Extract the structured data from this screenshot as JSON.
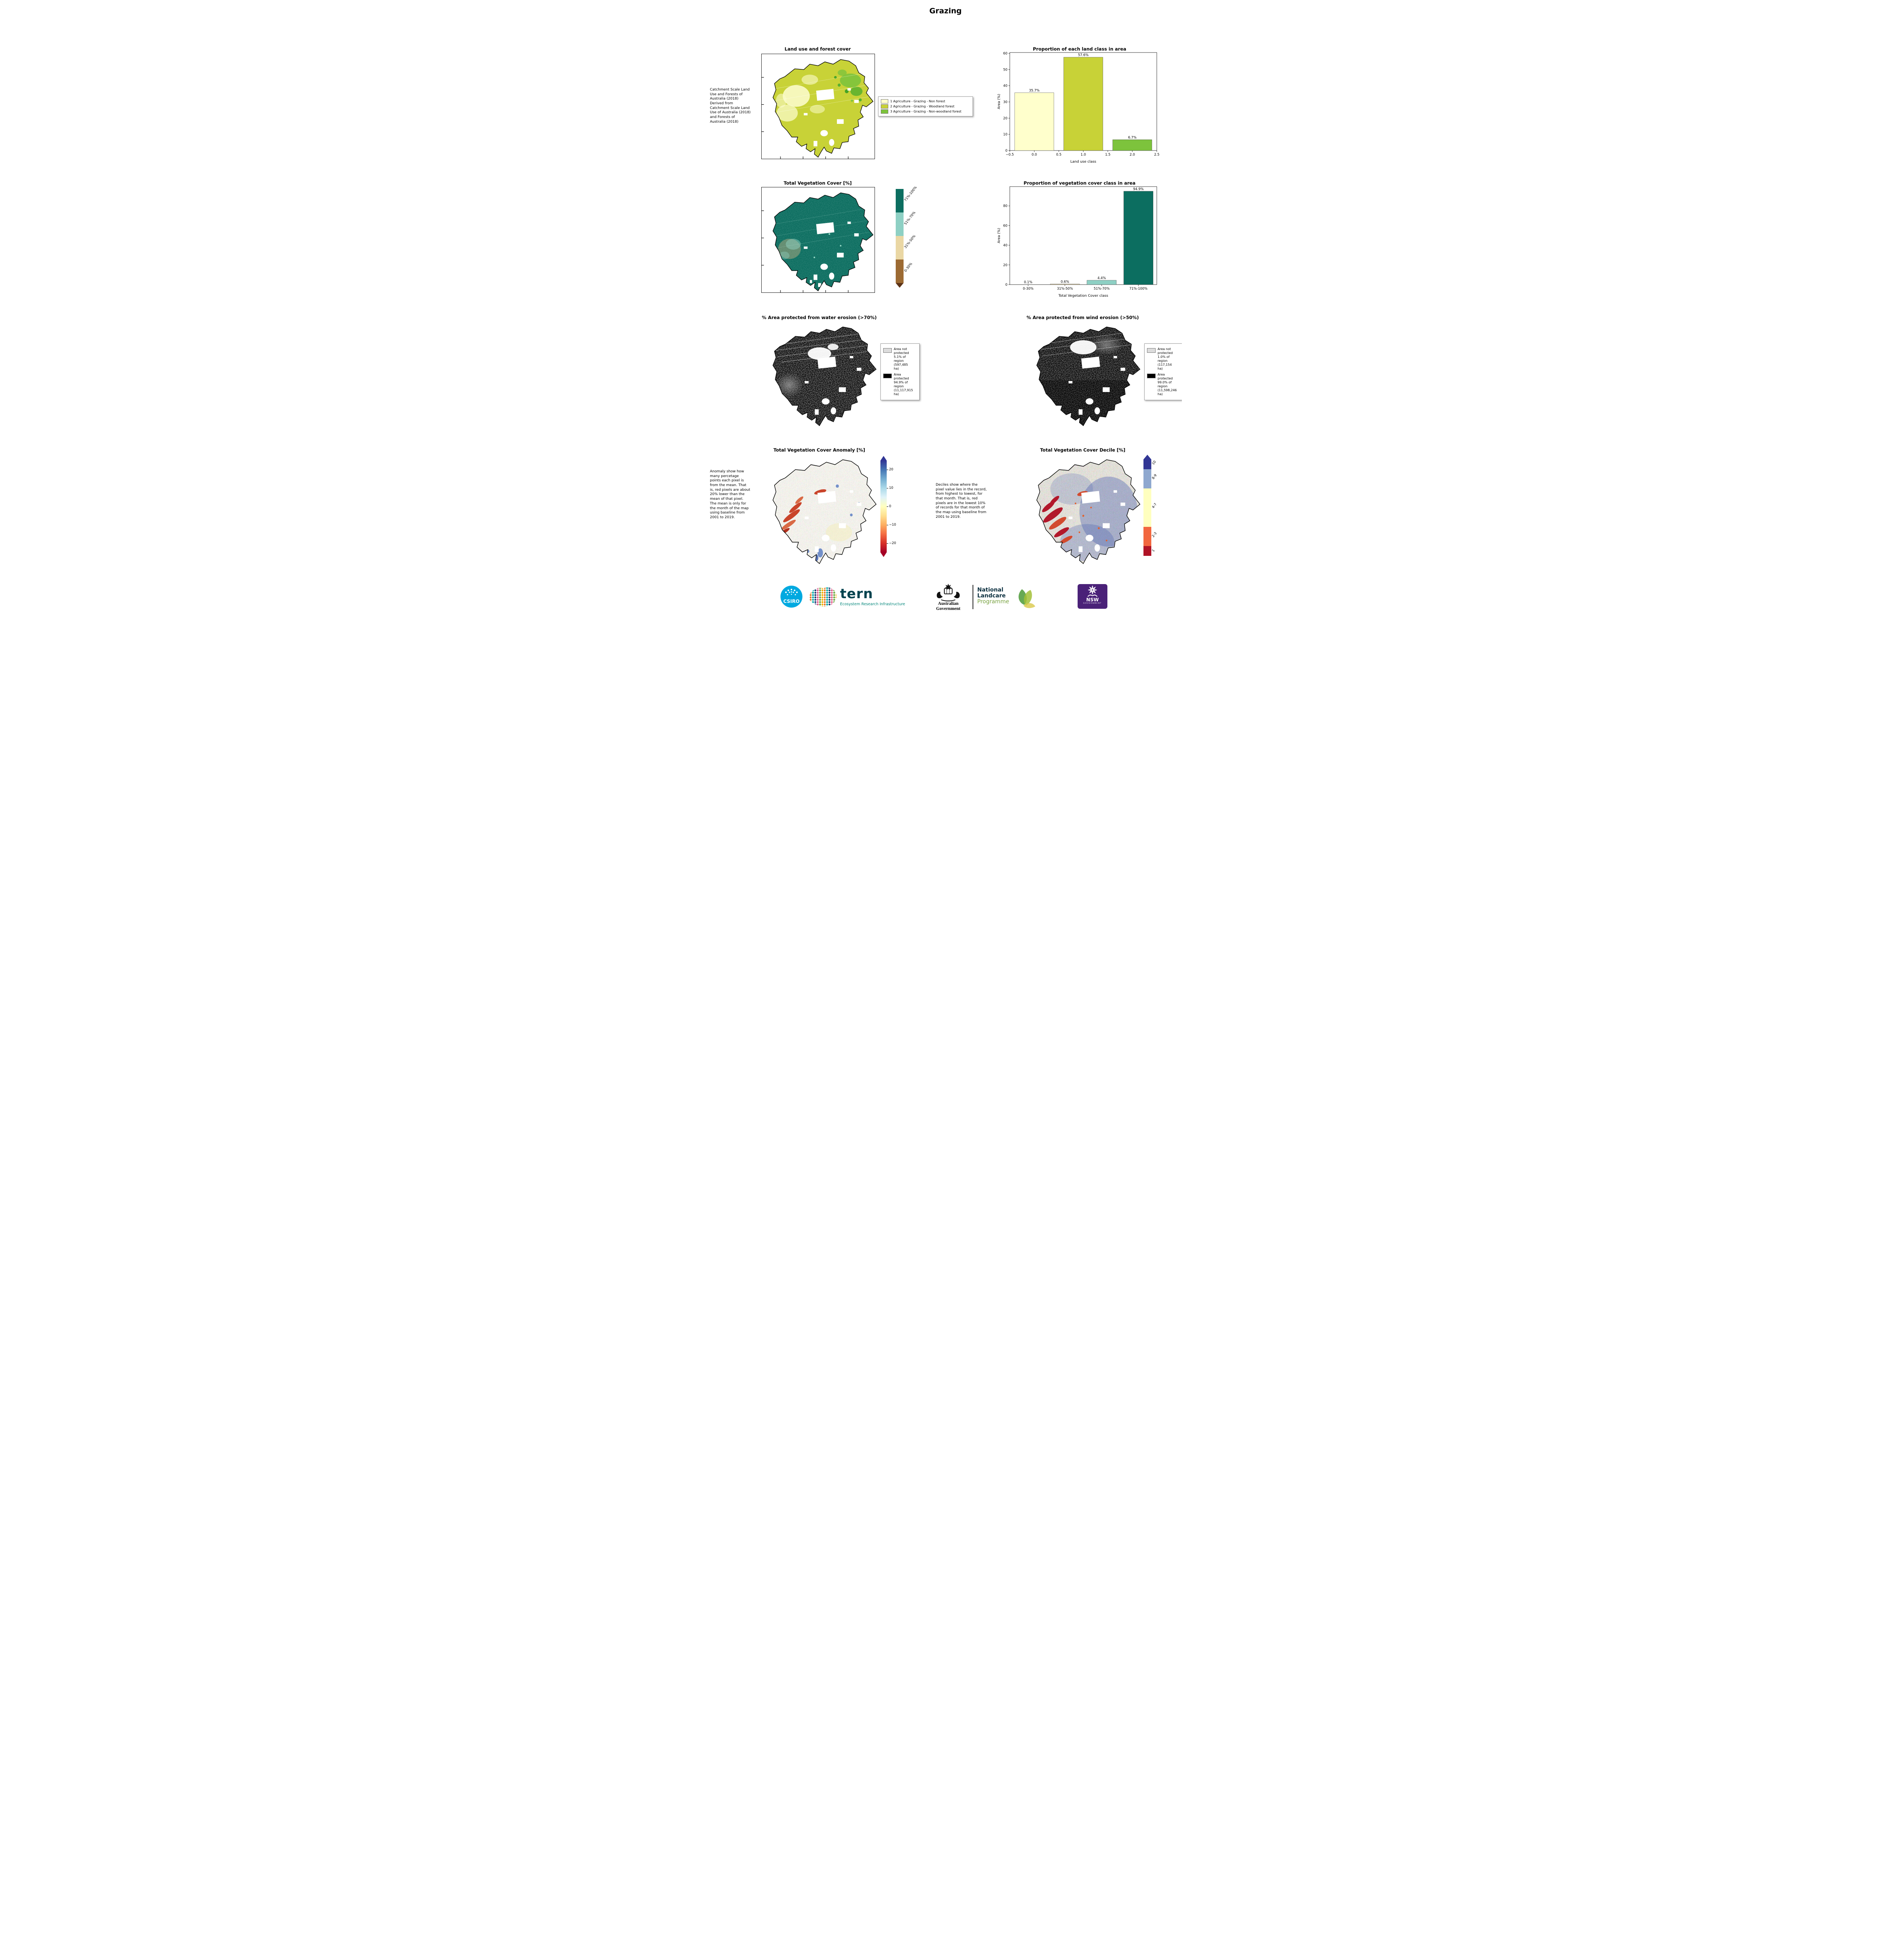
{
  "page": {
    "title": "Grazing"
  },
  "panels": {
    "land_use": {
      "title": "Land use and forest cover",
      "caption": "Catchment Scale Land Use and Forests of Australia (2018) Derived from Catchment Scale Land Use of Australia (2018) and Forests of Australia (2018)",
      "legend": [
        {
          "label": "1 Agriculture - Grazing - Non forest",
          "color": "#ffffcc"
        },
        {
          "label": "2 Agriculture - Grazing - Woodland forest",
          "color": "#c8d237"
        },
        {
          "label": "3 Agriculture - Grazing - Non-woodland forest",
          "color": "#7dc33c"
        }
      ]
    },
    "veg_cover": {
      "title": "Total Vegetation Cover [%]",
      "colorbar": {
        "segments": [
          {
            "label": "71%-100%",
            "color": "#0c6e60",
            "h": 25
          },
          {
            "label": "51%-70%",
            "color": "#8ed0c4",
            "h": 25
          },
          {
            "label": "31%-50%",
            "color": "#ead7a4",
            "h": 25
          },
          {
            "label": "0-30%",
            "color": "#9c6a33",
            "h": 25
          }
        ],
        "tip_bottom": "#5c3317"
      }
    },
    "water_erosion": {
      "title": "% Area protected from water erosion (>70%)",
      "legend": [
        {
          "label": "Area not protected 5.1% of region (597,485 ha)",
          "color": "#dcdcdc"
        },
        {
          "label": "Area protected 94.9% of region (11,117,915 ha)",
          "color": "#000000"
        }
      ]
    },
    "wind_erosion": {
      "title": "% Area protected from wind erosion (>50%)",
      "legend": [
        {
          "label": "Area not protected 1.0% of region (117,154 ha)",
          "color": "#dcdcdc"
        },
        {
          "label": "Area protected 99.0% of region (11,598,246 ha)",
          "color": "#000000"
        }
      ]
    },
    "anomaly": {
      "title": "Total Vegetation Cover Anomaly [%]",
      "caption": "Anomaly show how many percetage points each pixel is from the mean. That is, red pixels are about 20% lower than the mean of that pixel. The mean is only for the month of the map using baseline from 2001 to 2019.",
      "colorbar": {
        "stops": [
          "#a50026",
          "#d73027",
          "#f46d43",
          "#fdae61",
          "#fee090",
          "#ffffbf",
          "#e0f3f8",
          "#abd9e9",
          "#74add1",
          "#4575b4",
          "#313695"
        ],
        "range": [
          -25,
          25
        ],
        "ticks": [
          {
            "v": 20,
            "label": "20"
          },
          {
            "v": 10,
            "label": "10"
          },
          {
            "v": 0,
            "label": "0"
          },
          {
            "v": -10,
            "label": "−10"
          },
          {
            "v": -20,
            "label": "−20"
          }
        ]
      }
    },
    "decile": {
      "title": "Total Vegetation Cover Decile [%]",
      "caption": "Deciles show where the pixel value lies in the record, from highest to lowest, for that month. That is, red pixels are in the lowest 10% of records for that month of the map using baseline from 2001 to 2019.",
      "colorbar": {
        "tip_top": "#313695",
        "segments": [
          {
            "label": "10",
            "color": "#313695",
            "h": 10
          },
          {
            "label": "8-9",
            "color": "#8fa8cf",
            "h": 20
          },
          {
            "label": "4-7",
            "color": "#ffffbf",
            "h": 40
          },
          {
            "label": "2-3",
            "color": "#f2673f",
            "h": 20
          },
          {
            "label": "1",
            "color": "#b01326",
            "h": 10
          }
        ]
      }
    }
  },
  "chart_data": [
    {
      "type": "bar",
      "title": "Proportion of each land class in area",
      "xlabel": "Land use class",
      "ylabel": "Area (%)",
      "x": [
        0,
        1,
        2
      ],
      "values": [
        35.7,
        57.6,
        6.7
      ],
      "bar_labels": [
        "35.7%",
        "57.6%",
        "6.7%"
      ],
      "colors": [
        "#ffffcc",
        "#c8d237",
        "#7dc33c"
      ],
      "bar_width": 0.8,
      "xlim": [
        -0.5,
        2.5
      ],
      "ylim": [
        0,
        60.5
      ],
      "xticks": [
        -0.5,
        0,
        0.5,
        1,
        1.5,
        2,
        2.5
      ],
      "xtick_labels": [
        "−0.5",
        "0.0",
        "0.5",
        "1.0",
        "1.5",
        "2.0",
        "2.5"
      ],
      "yticks": [
        0,
        10,
        20,
        30,
        40,
        50,
        60
      ]
    },
    {
      "type": "bar",
      "title": "Proportion of vegetation cover class in area",
      "xlabel": "Total Vegetation Cover class",
      "ylabel": "Area (%)",
      "categories": [
        "0-30%",
        "31%-50%",
        "51%-70%",
        "71%-100%"
      ],
      "x": [
        0,
        1,
        2,
        3
      ],
      "values": [
        0.1,
        0.6,
        4.4,
        94.9
      ],
      "bar_labels": [
        "0.1%",
        "0.6%",
        "4.4%",
        "94.9%"
      ],
      "colors": [
        "#9c6a33",
        "#ead7a4",
        "#8ed0c4",
        "#0c6e60"
      ],
      "bar_width": 0.8,
      "xlim": [
        -0.5,
        3.5
      ],
      "ylim": [
        0,
        99.6
      ],
      "xticks": [
        0,
        1,
        2,
        3
      ],
      "xtick_labels": [
        "0-30%",
        "31%-50%",
        "51%-70%",
        "71%-100%"
      ],
      "yticks": [
        0,
        20,
        40,
        60,
        80
      ]
    }
  ],
  "footer": {
    "csiro": "CSIRO",
    "tern_wordmark": "tern",
    "tern_subtitle": "Ecosystem Research Infrastructure",
    "aus_gov": "Australian Government",
    "landcare": {
      "line1": "National",
      "line2": "Landcare",
      "line3": "Programme"
    },
    "nsw": {
      "line1": "NSW",
      "line2": "GOVERNMENT"
    }
  }
}
